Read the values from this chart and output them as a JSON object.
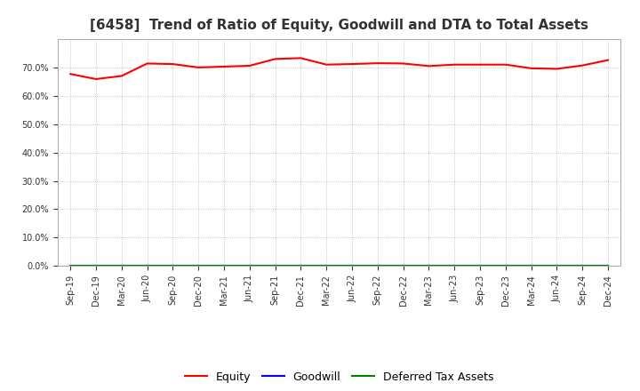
{
  "title": "[6458]  Trend of Ratio of Equity, Goodwill and DTA to Total Assets",
  "x_labels": [
    "Sep-19",
    "Dec-19",
    "Mar-20",
    "Jun-20",
    "Sep-20",
    "Dec-20",
    "Mar-21",
    "Jun-21",
    "Sep-21",
    "Dec-21",
    "Mar-22",
    "Jun-22",
    "Sep-22",
    "Dec-22",
    "Mar-23",
    "Jun-23",
    "Sep-23",
    "Dec-23",
    "Mar-24",
    "Jun-24",
    "Sep-24",
    "Dec-24"
  ],
  "equity": [
    0.677,
    0.659,
    0.67,
    0.714,
    0.712,
    0.7,
    0.703,
    0.706,
    0.73,
    0.733,
    0.71,
    0.712,
    0.715,
    0.714,
    0.705,
    0.71,
    0.71,
    0.71,
    0.697,
    0.695,
    0.707,
    0.726
  ],
  "goodwill": [
    0.0,
    0.0,
    0.0,
    0.0,
    0.0,
    0.0,
    0.0,
    0.0,
    0.0,
    0.0,
    0.0,
    0.0,
    0.0,
    0.0,
    0.0,
    0.0,
    0.0,
    0.0,
    0.0,
    0.0,
    0.0,
    0.0
  ],
  "dta": [
    0.0,
    0.0,
    0.0,
    0.0,
    0.0,
    0.0,
    0.0,
    0.0,
    0.0,
    0.0,
    0.0,
    0.0,
    0.0,
    0.0,
    0.0,
    0.0,
    0.0,
    0.0,
    0.0,
    0.0,
    0.0,
    0.0
  ],
  "equity_color": "#FF0000",
  "goodwill_color": "#0000FF",
  "dta_color": "#008000",
  "ylim": [
    0.0,
    0.8
  ],
  "yticks": [
    0.0,
    0.1,
    0.2,
    0.3,
    0.4,
    0.5,
    0.6,
    0.7
  ],
  "plot_bg_color": "#FFFFFF",
  "fig_bg_color": "#FFFFFF",
  "grid_color": "#999999",
  "title_fontsize": 11,
  "title_color": "#333333",
  "tick_fontsize": 7,
  "legend_labels": [
    "Equity",
    "Goodwill",
    "Deferred Tax Assets"
  ],
  "legend_fontsize": 9
}
